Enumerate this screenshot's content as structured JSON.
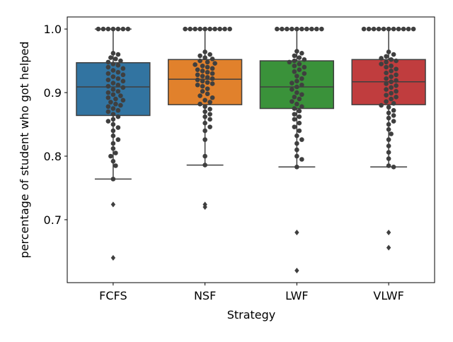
{
  "chart_data": {
    "type": "box",
    "xlabel": "Strategy",
    "ylabel": "percentage of student who got helped",
    "categories": [
      "FCFS",
      "NSF",
      "LWF",
      "VLWF"
    ],
    "ylim": [
      0.601,
      1.019
    ],
    "yticks": [
      {
        "value": 1,
        "label": "1.0"
      },
      0.9,
      0.8,
      0.7
    ],
    "point_color": "#3f3f3f",
    "boxes": [
      {
        "color": "#3274a1",
        "whislo": 0.764,
        "q1": 0.864,
        "med": 0.909,
        "q3": 0.947,
        "whishi": 1,
        "fliers": [
          0.724,
          0.64
        ],
        "points": [
          1,
          1,
          1,
          1,
          1,
          1,
          1,
          0.962,
          0.96,
          0.955,
          0.953,
          0.95,
          0.948,
          0.945,
          0.943,
          0.94,
          0.938,
          0.935,
          0.932,
          0.93,
          0.928,
          0.925,
          0.922,
          0.92,
          0.918,
          0.915,
          0.912,
          0.91,
          0.908,
          0.905,
          0.902,
          0.9,
          0.897,
          0.895,
          0.892,
          0.89,
          0.888,
          0.885,
          0.882,
          0.88,
          0.878,
          0.875,
          0.872,
          0.87,
          0.866,
          0.862,
          0.858,
          0.855,
          0.85,
          0.845,
          0.84,
          0.832,
          0.826,
          0.82,
          0.812,
          0.805,
          0.8,
          0.792,
          0.785,
          0.764
        ]
      },
      {
        "color": "#e1812c",
        "whislo": 0.786,
        "q1": 0.881,
        "med": 0.921,
        "q3": 0.952,
        "whishi": 1,
        "fliers": [
          0.724,
          0.72
        ],
        "points": [
          1,
          1,
          1,
          1,
          1,
          1,
          1,
          1,
          1,
          1,
          0.964,
          0.96,
          0.958,
          0.955,
          0.953,
          0.95,
          0.948,
          0.946,
          0.944,
          0.942,
          0.94,
          0.938,
          0.936,
          0.934,
          0.932,
          0.93,
          0.928,
          0.926,
          0.924,
          0.922,
          0.92,
          0.918,
          0.916,
          0.914,
          0.912,
          0.91,
          0.906,
          0.902,
          0.898,
          0.895,
          0.892,
          0.888,
          0.885,
          0.882,
          0.878,
          0.874,
          0.87,
          0.866,
          0.862,
          0.858,
          0.852,
          0.846,
          0.84,
          0.826,
          0.8,
          0.786
        ]
      },
      {
        "color": "#3a923a",
        "whislo": 0.783,
        "q1": 0.875,
        "med": 0.909,
        "q3": 0.95,
        "whishi": 1,
        "fliers": [
          0.68,
          0.62
        ],
        "points": [
          1,
          1,
          1,
          1,
          1,
          1,
          1,
          1,
          1,
          1,
          0.965,
          0.962,
          0.958,
          0.955,
          0.952,
          0.95,
          0.948,
          0.945,
          0.942,
          0.94,
          0.936,
          0.933,
          0.93,
          0.926,
          0.922,
          0.918,
          0.915,
          0.912,
          0.909,
          0.905,
          0.9,
          0.897,
          0.893,
          0.89,
          0.886,
          0.882,
          0.878,
          0.875,
          0.871,
          0.866,
          0.862,
          0.858,
          0.852,
          0.846,
          0.84,
          0.832,
          0.826,
          0.82,
          0.81,
          0.8,
          0.795,
          0.783
        ]
      },
      {
        "color": "#c03d3e",
        "whislo": 0.783,
        "q1": 0.881,
        "med": 0.917,
        "q3": 0.952,
        "whishi": 1,
        "fliers": [
          0.68,
          0.656
        ],
        "points": [
          1,
          1,
          1,
          1,
          1,
          1,
          1,
          1,
          1,
          1,
          1,
          0.964,
          0.96,
          0.957,
          0.954,
          0.952,
          0.95,
          0.948,
          0.945,
          0.942,
          0.94,
          0.937,
          0.934,
          0.931,
          0.928,
          0.925,
          0.922,
          0.919,
          0.917,
          0.914,
          0.911,
          0.908,
          0.905,
          0.902,
          0.899,
          0.896,
          0.893,
          0.89,
          0.886,
          0.883,
          0.88,
          0.877,
          0.872,
          0.868,
          0.864,
          0.86,
          0.855,
          0.85,
          0.842,
          0.835,
          0.826,
          0.816,
          0.806,
          0.796,
          0.785,
          0.783
        ]
      }
    ]
  }
}
